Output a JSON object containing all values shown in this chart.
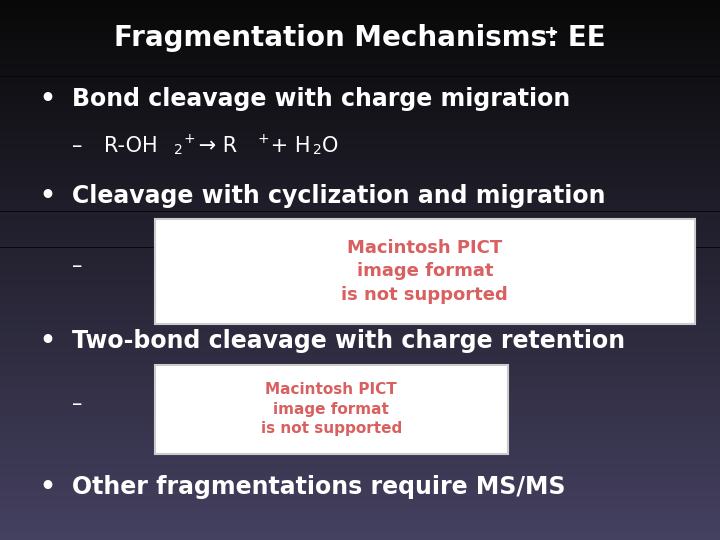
{
  "bg_color_top": "#080808",
  "bg_color_bottom": "#444060",
  "text_color": "#ffffff",
  "title_main": "Fragmentation Mechanisms: EE",
  "title_sup": "+",
  "bullet1": "Bond cleavage with charge migration",
  "bullet2": "Cleavage with cyclization and migration",
  "bullet3": "Two-bond cleavage with charge retention",
  "bullet4": "Other fragmentations require MS/MS",
  "pict_text": "Macintosh PICT\nimage format\nis not supported",
  "pict_color": "#d96060",
  "pict_bg": "#ffffff",
  "pict_border": "#cccccc",
  "dash": "–"
}
